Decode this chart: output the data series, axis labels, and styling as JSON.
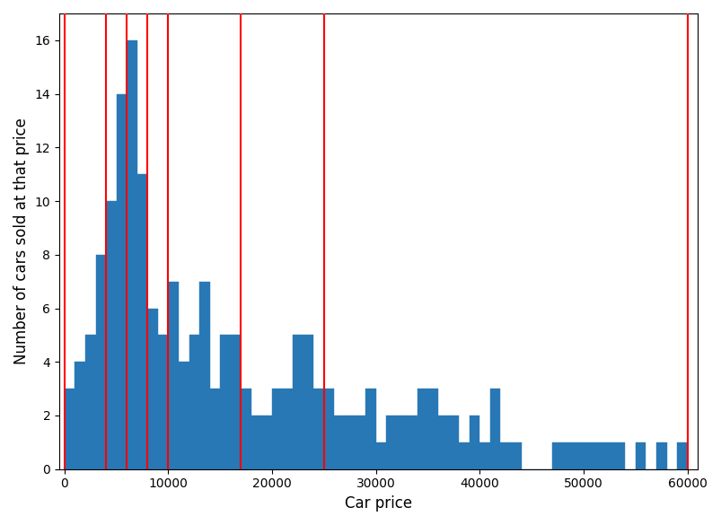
{
  "bin_heights": [
    3,
    4,
    5,
    8,
    10,
    14,
    16,
    11,
    6,
    5,
    7,
    4,
    5,
    7,
    3,
    5,
    5,
    3,
    2,
    2,
    3,
    3,
    5,
    5,
    3,
    3,
    2,
    2,
    2,
    3,
    1,
    2,
    2,
    2,
    3,
    3,
    2,
    2,
    1,
    2,
    1,
    3,
    1,
    1,
    0,
    0,
    0,
    1,
    1,
    1,
    1,
    1,
    1,
    1,
    0,
    1,
    0,
    1,
    0,
    1
  ],
  "bin_width": 1000,
  "bin_start": 0,
  "bar_color": "#2878b5",
  "red_lines": [
    0,
    4000,
    6000,
    8000,
    10000,
    17000,
    25000,
    60000
  ],
  "xlabel": "Car price",
  "ylabel": "Number of cars sold at that price",
  "ylim": [
    0,
    17
  ],
  "xlim": [
    -500,
    61000
  ],
  "figsize": [
    8.04,
    5.85
  ],
  "dpi": 100,
  "xticks": [
    0,
    10000,
    20000,
    30000,
    40000,
    50000,
    60000
  ]
}
